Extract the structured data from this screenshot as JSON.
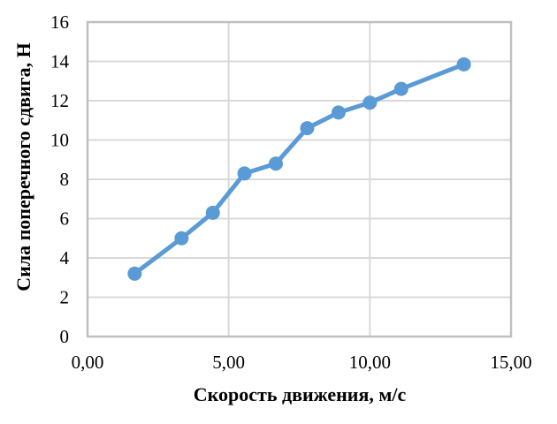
{
  "chart_data": {
    "type": "line",
    "xlabel": "Скорость движения, м/с",
    "ylabel": "Сила поперечного сдвига, Н",
    "x": [
      1.67,
      3.33,
      4.44,
      5.56,
      6.67,
      7.78,
      8.89,
      10.0,
      11.11,
      13.33
    ],
    "values": [
      3.2,
      5.0,
      6.3,
      8.3,
      8.8,
      10.6,
      11.4,
      11.9,
      12.6,
      13.85
    ],
    "xlim": [
      0,
      15
    ],
    "ylim": [
      0,
      16
    ],
    "xticks": {
      "values": [
        0,
        5,
        10,
        15
      ],
      "labels": [
        "0,00",
        "5,00",
        "10,00",
        "15,00"
      ]
    },
    "yticks": {
      "values": [
        0,
        2,
        4,
        6,
        8,
        10,
        12,
        14,
        16
      ],
      "labels": [
        "0",
        "2",
        "4",
        "6",
        "8",
        "10",
        "12",
        "14",
        "16"
      ]
    },
    "grid": true,
    "legend": false,
    "marker": "circle",
    "marker_radius": 8,
    "line_width": 5,
    "colors": {
      "line": "#5B9BD5",
      "marker": "#5B9BD5",
      "grid": "#D9D9D9",
      "plot_border": "#BFBFBF",
      "text": "#000000",
      "background": "#FFFFFF"
    }
  }
}
